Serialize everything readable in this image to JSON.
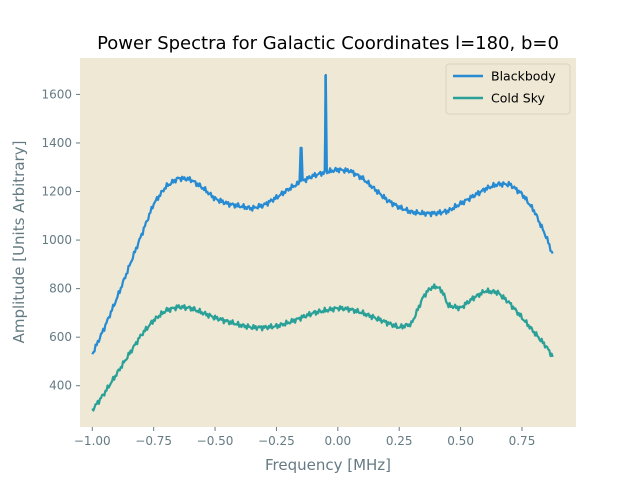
{
  "chart_data": {
    "type": "line",
    "title": "Power Spectra for Galactic Coordinates l=180, b=0",
    "xlabel": "Frequency [MHz]",
    "ylabel": "Amplitude [Units Arbitrary]",
    "xlim": [
      -1.05,
      0.97
    ],
    "ylim": [
      230,
      1750
    ],
    "xticks": [
      -1.0,
      -0.75,
      -0.5,
      -0.25,
      0.0,
      0.25,
      0.5,
      0.75
    ],
    "xtick_labels": [
      "−1.00",
      "−0.75",
      "−0.50",
      "−0.25",
      "0.00",
      "0.25",
      "0.50",
      "0.75"
    ],
    "yticks": [
      400,
      600,
      800,
      1000,
      1200,
      1400,
      1600
    ],
    "ytick_labels": [
      "400",
      "600",
      "800",
      "1000",
      "1200",
      "1400",
      "1600"
    ],
    "grid": false,
    "legend_position": "top-right",
    "colors": {
      "plot_background": "#eee8d5",
      "axis_text": "#657b83"
    },
    "series": [
      {
        "name": "Blackbody",
        "color": "#268bd2",
        "x": [
          -1.0,
          -0.95,
          -0.9,
          -0.85,
          -0.8,
          -0.75,
          -0.7,
          -0.65,
          -0.6,
          -0.55,
          -0.5,
          -0.45,
          -0.4,
          -0.35,
          -0.3,
          -0.25,
          -0.2,
          -0.15,
          -0.1,
          -0.05,
          0.0,
          0.05,
          0.1,
          0.15,
          0.2,
          0.25,
          0.3,
          0.35,
          0.4,
          0.45,
          0.5,
          0.55,
          0.6,
          0.65,
          0.7,
          0.75,
          0.8,
          0.85,
          0.875
        ],
        "y": [
          530,
          640,
          760,
          890,
          1020,
          1150,
          1220,
          1255,
          1250,
          1215,
          1170,
          1150,
          1140,
          1130,
          1145,
          1175,
          1210,
          1240,
          1265,
          1280,
          1290,
          1285,
          1255,
          1210,
          1165,
          1135,
          1115,
          1110,
          1110,
          1120,
          1150,
          1180,
          1210,
          1230,
          1230,
          1190,
          1120,
          1010,
          940
        ],
        "spikes": [
          {
            "x": -0.15,
            "y": 1380
          },
          {
            "x": -0.05,
            "y": 1680
          }
        ]
      },
      {
        "name": "Cold Sky",
        "color": "#2aa198",
        "x": [
          -1.0,
          -0.95,
          -0.9,
          -0.85,
          -0.8,
          -0.75,
          -0.7,
          -0.65,
          -0.6,
          -0.55,
          -0.5,
          -0.45,
          -0.4,
          -0.35,
          -0.3,
          -0.25,
          -0.2,
          -0.15,
          -0.1,
          -0.05,
          0.0,
          0.05,
          0.1,
          0.15,
          0.2,
          0.25,
          0.3,
          0.35,
          0.375,
          0.4,
          0.425,
          0.45,
          0.5,
          0.55,
          0.6,
          0.65,
          0.7,
          0.75,
          0.8,
          0.85,
          0.875
        ],
        "y": [
          300,
          370,
          450,
          530,
          610,
          670,
          710,
          725,
          720,
          700,
          680,
          665,
          650,
          640,
          640,
          645,
          660,
          680,
          700,
          710,
          720,
          715,
          700,
          680,
          660,
          640,
          655,
          770,
          800,
          810,
          790,
          730,
          720,
          760,
          790,
          785,
          740,
          680,
          620,
          560,
          520
        ]
      }
    ]
  }
}
